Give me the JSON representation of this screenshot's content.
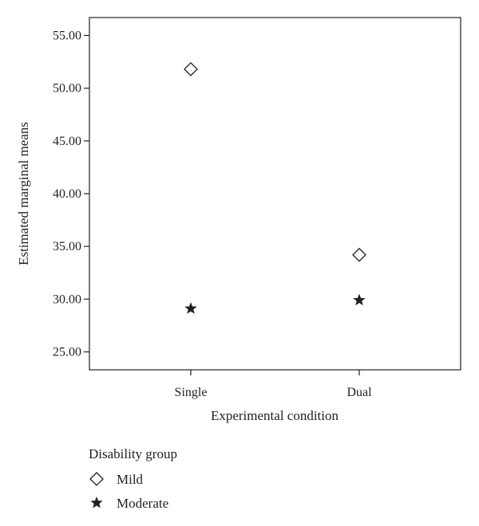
{
  "chart_data": {
    "type": "scatter",
    "categories": [
      "Single",
      "Dual"
    ],
    "series": [
      {
        "name": "Mild",
        "marker": "diamond",
        "values": [
          51.8,
          34.2
        ]
      },
      {
        "name": "Moderate",
        "marker": "star",
        "values": [
          29.1,
          29.9
        ]
      }
    ],
    "xlabel": "Experimental condition",
    "ylabel": "Estimated marginal means",
    "ylim": [
      23.3,
      56.7
    ],
    "yticks": [
      25,
      30,
      35,
      40,
      45,
      50,
      55
    ],
    "ytick_labels": [
      "25.00",
      "30.00",
      "35.00",
      "40.00",
      "45.00",
      "50.00",
      "55.00"
    ],
    "grid": false,
    "legend": {
      "title": "Disability group",
      "placement": "bottom-left",
      "entries": [
        "Mild",
        "Moderate"
      ]
    },
    "colors": {
      "ink": "#231f20",
      "background": "#ffffff"
    }
  }
}
